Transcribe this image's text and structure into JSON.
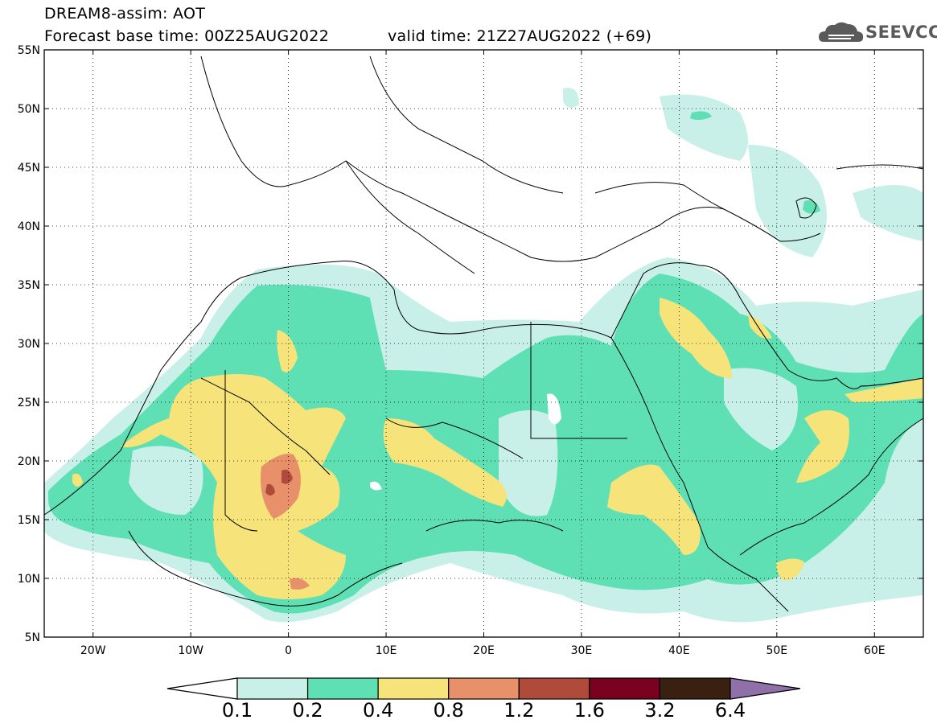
{
  "header": {
    "model_title": "DREAM8-assim: AOT",
    "base_time": "Forecast base time: 00Z25AUG2022",
    "valid_time": "valid time: 21Z27AUG2022 (+69)"
  },
  "logo": {
    "text": "SEEVCCC",
    "icon": "cloud-icon",
    "color": "#5a5a5a"
  },
  "map": {
    "lon_range": [
      -25,
      65
    ],
    "lat_range": [
      5,
      55
    ],
    "lon_ticks": [
      "20W",
      "10W",
      "0",
      "10E",
      "20E",
      "30E",
      "40E",
      "50E",
      "60E"
    ],
    "lat_ticks": [
      "5N",
      "10N",
      "15N",
      "20N",
      "25N",
      "30N",
      "35N",
      "40N",
      "45N",
      "50N",
      "55N"
    ]
  },
  "colorbar": {
    "labels": [
      "0.1",
      "0.2",
      "0.4",
      "0.8",
      "1.2",
      "1.6",
      "3.2",
      "6.4"
    ],
    "colors": [
      "#c8f0e8",
      "#5ee0b4",
      "#f6e47a",
      "#e8906a",
      "#b04a3a",
      "#7a0020",
      "#3a2010",
      "#9070a8"
    ],
    "low_end_color": "#ffffff"
  }
}
